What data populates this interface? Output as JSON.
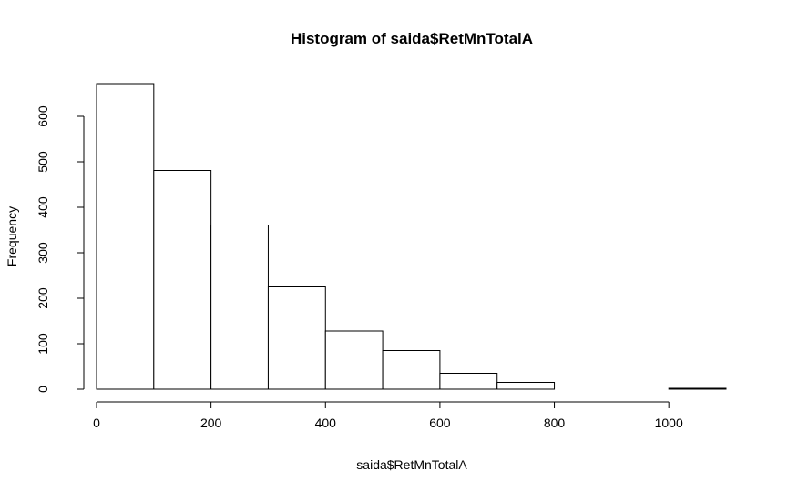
{
  "chart_data": {
    "type": "bar",
    "title": "Histogram of saida$RetMnTotalA",
    "xlabel": "saida$RetMnTotalA",
    "ylabel": "Frequency",
    "bins": [
      {
        "x0": 0,
        "x1": 100,
        "count": 672
      },
      {
        "x0": 100,
        "x1": 200,
        "count": 481
      },
      {
        "x0": 200,
        "x1": 300,
        "count": 361
      },
      {
        "x0": 300,
        "x1": 400,
        "count": 225
      },
      {
        "x0": 400,
        "x1": 500,
        "count": 128
      },
      {
        "x0": 500,
        "x1": 600,
        "count": 85
      },
      {
        "x0": 600,
        "x1": 700,
        "count": 35
      },
      {
        "x0": 700,
        "x1": 800,
        "count": 15
      },
      {
        "x0": 800,
        "x1": 900,
        "count": 0
      },
      {
        "x0": 900,
        "x1": 1000,
        "count": 0
      },
      {
        "x0": 1000,
        "x1": 1100,
        "count": 2
      }
    ],
    "xticks": [
      "0",
      "200",
      "400",
      "600",
      "800",
      "1000"
    ],
    "yticks": [
      "0",
      "100",
      "200",
      "300",
      "400",
      "500",
      "600"
    ],
    "xlim": [
      0,
      1100
    ],
    "ylim": [
      0,
      672
    ],
    "grid": false
  }
}
